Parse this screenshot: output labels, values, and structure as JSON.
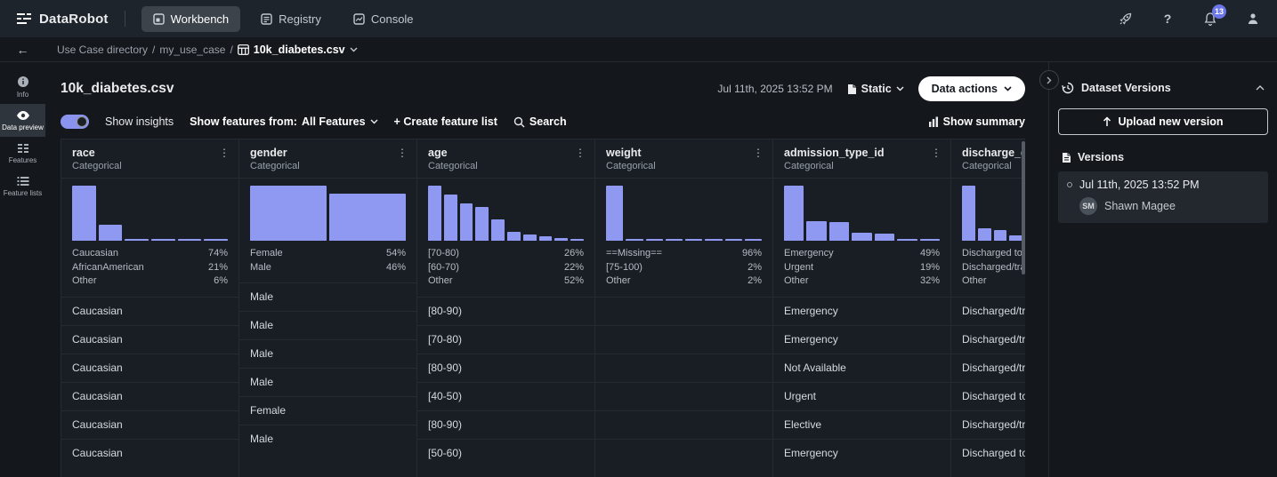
{
  "colors": {
    "accent": "#8f99f2",
    "badge": "#6b76e8",
    "toggle": "#8a94ee",
    "action_button": "#ffffff"
  },
  "nav": {
    "brand": "DataRobot",
    "tabs": [
      {
        "label": "Workbench",
        "active": true
      },
      {
        "label": "Registry",
        "active": false
      },
      {
        "label": "Console",
        "active": false
      }
    ],
    "notification_count": "13"
  },
  "breadcrumb": {
    "items": [
      "Use Case directory",
      "my_use_case"
    ],
    "separator": "/",
    "current": "10k_diabetes.csv"
  },
  "sidebar": {
    "items": [
      {
        "label": "Info",
        "active": false
      },
      {
        "label": "Data preview",
        "active": true
      },
      {
        "label": "Features",
        "active": false
      },
      {
        "label": "Feature lists",
        "active": false
      }
    ]
  },
  "header": {
    "title": "10k_diabetes.csv",
    "timestamp": "Jul 11th, 2025 13:52 PM",
    "static_label": "Static",
    "data_actions_label": "Data actions"
  },
  "toolbar": {
    "show_insights_label": "Show insights",
    "show_features_from_label": "Show features from:",
    "features_filter_value": "All Features",
    "create_feature_list_label": "+ Create feature list",
    "search_label": "Search",
    "show_summary_label": "Show summary"
  },
  "table": {
    "columns": [
      {
        "name": "race",
        "type": "Categorical",
        "bars": [
          100,
          29,
          4,
          3,
          3,
          2
        ],
        "stats": [
          [
            "Caucasian",
            "74%"
          ],
          [
            "AfricanAmerican",
            "21%"
          ],
          [
            "Other",
            "6%"
          ]
        ]
      },
      {
        "name": "gender",
        "type": "Categorical",
        "bars": [
          100,
          85
        ],
        "stats": [
          [
            "Female",
            "54%"
          ],
          [
            "Male",
            "46%"
          ]
        ]
      },
      {
        "name": "age",
        "type": "Categorical",
        "bars": [
          100,
          84,
          68,
          62,
          38,
          16,
          12,
          8,
          5,
          2
        ],
        "stats": [
          [
            "[70-80)",
            "26%"
          ],
          [
            "[60-70)",
            "22%"
          ],
          [
            "Other",
            "52%"
          ]
        ]
      },
      {
        "name": "weight",
        "type": "Categorical",
        "bars": [
          100,
          3,
          1,
          1,
          1,
          1,
          1,
          1
        ],
        "stats": [
          [
            "==Missing==",
            "96%"
          ],
          [
            "[75-100)",
            "2%"
          ],
          [
            "Other",
            "2%"
          ]
        ]
      },
      {
        "name": "admission_type_id",
        "type": "Categorical",
        "bars": [
          100,
          36,
          34,
          15,
          13,
          2,
          2
        ],
        "stats": [
          [
            "Emergency",
            "49%"
          ],
          [
            "Urgent",
            "19%"
          ],
          [
            "Other",
            "32%"
          ]
        ]
      },
      {
        "name": "discharge_disp",
        "type": "Categorical",
        "bars": [
          100,
          22,
          20,
          9,
          4,
          3,
          2,
          1,
          1,
          1
        ],
        "stats": [
          [
            "Discharged to ho",
            ""
          ],
          [
            "Discharged/trans",
            ""
          ],
          [
            "Other",
            ""
          ]
        ]
      }
    ],
    "rows": [
      [
        "Caucasian",
        "Male",
        "[80-90)",
        "",
        "Emergency",
        "Discharged/tra"
      ],
      [
        "Caucasian",
        "Male",
        "[70-80)",
        "",
        "Emergency",
        "Discharged/tra"
      ],
      [
        "Caucasian",
        "Male",
        "[80-90)",
        "",
        "Not Available",
        "Discharged/tra"
      ],
      [
        "Caucasian",
        "Male",
        "[40-50)",
        "",
        "Urgent",
        "Discharged to"
      ],
      [
        "Caucasian",
        "Female",
        "[80-90)",
        "",
        "Elective",
        "Discharged/tra"
      ],
      [
        "Caucasian",
        "Male",
        "[50-60)",
        "",
        "Emergency",
        "Discharged to"
      ]
    ]
  },
  "versions_panel": {
    "title": "Dataset Versions",
    "upload_label": "Upload new version",
    "versions_label": "Versions",
    "items": [
      {
        "timestamp": "Jul 11th, 2025 13:52 PM",
        "avatar_initials": "SM",
        "user": "Shawn Magee"
      }
    ]
  }
}
